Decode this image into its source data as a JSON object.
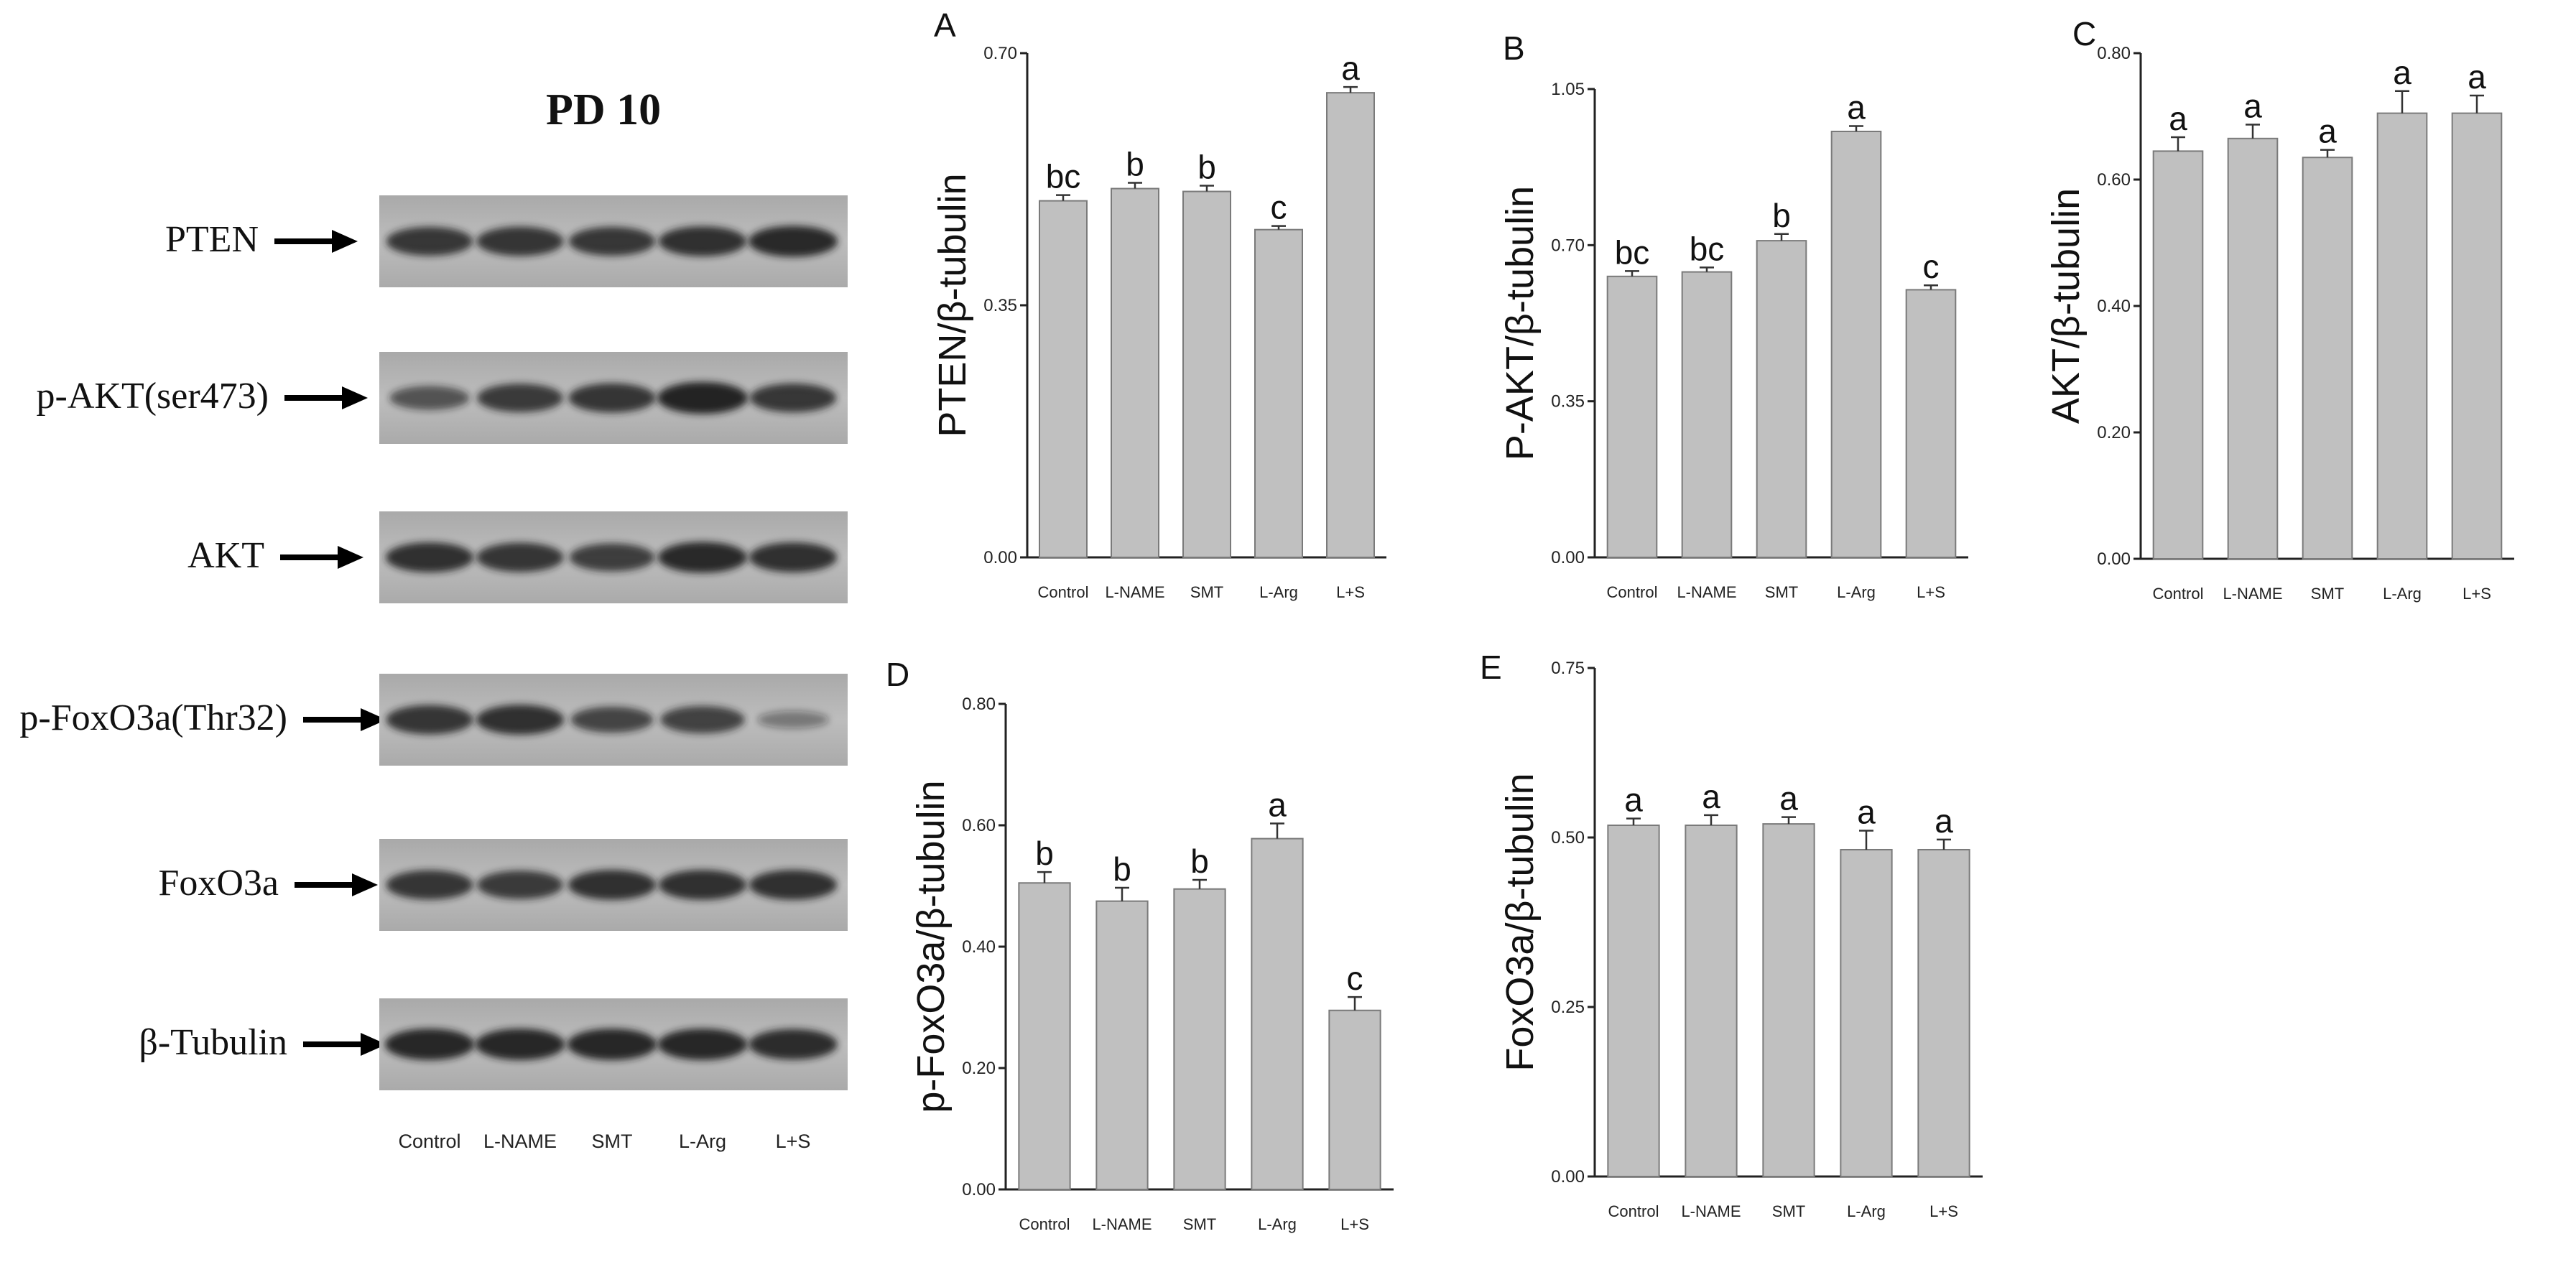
{
  "blot": {
    "title": "PD 10",
    "rows": [
      {
        "label": "PTEN",
        "bands": [
          0.8,
          0.82,
          0.8,
          0.85,
          0.9
        ]
      },
      {
        "label": "p-AKT(ser473)",
        "bands": [
          0.55,
          0.78,
          0.82,
          0.95,
          0.8
        ]
      },
      {
        "label": "AKT",
        "bands": [
          0.85,
          0.82,
          0.75,
          0.9,
          0.85
        ]
      },
      {
        "label": "p-FoxO3a(Thr32)",
        "bands": [
          0.82,
          0.85,
          0.65,
          0.72,
          0.22
        ]
      },
      {
        "label": "FoxO3a",
        "bands": [
          0.82,
          0.78,
          0.85,
          0.85,
          0.85
        ]
      },
      {
        "label": "β-Tubulin",
        "bands": [
          0.92,
          0.92,
          0.92,
          0.92,
          0.88
        ]
      }
    ],
    "lanes": [
      "Control",
      "L-NAME",
      "SMT",
      "L-Arg",
      "L+S"
    ]
  },
  "colors": {
    "bar": "#c0c0c0",
    "bar_stroke": "#7a7a7a",
    "axis": "#222222",
    "blot_bg": "#bdbdbd",
    "band": "#1e1e1e"
  },
  "chart_data": [
    {
      "panel": "A",
      "type": "bar",
      "ylabel": "PTEN/β-tubulin",
      "ylim": [
        0,
        0.7
      ],
      "yticks": [
        "0.00",
        "0.35",
        "0.70"
      ],
      "categories": [
        "Control",
        "L-NAME",
        "SMT",
        "L-Arg",
        "L+S"
      ],
      "values": [
        0.495,
        0.512,
        0.508,
        0.455,
        0.645
      ],
      "errors": [
        0.008,
        0.008,
        0.008,
        0.005,
        0.008
      ],
      "letters": [
        "bc",
        "b",
        "b",
        "c",
        "a"
      ]
    },
    {
      "panel": "B",
      "type": "bar",
      "ylabel": "P-AKT/β-tubulin",
      "ylim": [
        0,
        1.05
      ],
      "yticks": [
        "0.00",
        "0.35",
        "0.70",
        "1.05"
      ],
      "categories": [
        "Control",
        "L-NAME",
        "SMT",
        "L-Arg",
        "L+S"
      ],
      "values": [
        0.63,
        0.64,
        0.71,
        0.955,
        0.6
      ],
      "errors": [
        0.012,
        0.01,
        0.015,
        0.012,
        0.01
      ],
      "letters": [
        "bc",
        "bc",
        "b",
        "a",
        "c"
      ]
    },
    {
      "panel": "C",
      "type": "bar",
      "ylabel": "AKT/β-tubulin",
      "ylim": [
        0,
        0.8
      ],
      "yticks": [
        "0.00",
        "0.20",
        "0.40",
        "0.60",
        "0.80"
      ],
      "categories": [
        "Control",
        "L-NAME",
        "SMT",
        "L-Arg",
        "L+S"
      ],
      "values": [
        0.645,
        0.665,
        0.635,
        0.705,
        0.705
      ],
      "errors": [
        0.022,
        0.022,
        0.012,
        0.035,
        0.028
      ],
      "letters": [
        "a",
        "a",
        "a",
        "a",
        "a"
      ]
    },
    {
      "panel": "D",
      "type": "bar",
      "ylabel": "p-FoxO3a/β-tubulin",
      "ylim": [
        0,
        0.8
      ],
      "yticks": [
        "0.00",
        "0.20",
        "0.40",
        "0.60",
        "0.80"
      ],
      "categories": [
        "Control",
        "L-NAME",
        "SMT",
        "L-Arg",
        "L+S"
      ],
      "values": [
        0.505,
        0.475,
        0.495,
        0.578,
        0.295
      ],
      "errors": [
        0.018,
        0.022,
        0.015,
        0.025,
        0.022
      ],
      "letters": [
        "b",
        "b",
        "b",
        "a",
        "c"
      ]
    },
    {
      "panel": "E",
      "type": "bar",
      "ylabel": "FoxO3a/β-tubulin",
      "ylim": [
        0,
        0.75
      ],
      "yticks": [
        "0.00",
        "0.25",
        "0.50",
        "0.75"
      ],
      "categories": [
        "Control",
        "L-NAME",
        "SMT",
        "L-Arg",
        "L+S"
      ],
      "values": [
        0.518,
        0.518,
        0.52,
        0.482,
        0.482
      ],
      "errors": [
        0.01,
        0.015,
        0.01,
        0.028,
        0.015
      ],
      "letters": [
        "a",
        "a",
        "a",
        "a",
        "a"
      ]
    }
  ]
}
